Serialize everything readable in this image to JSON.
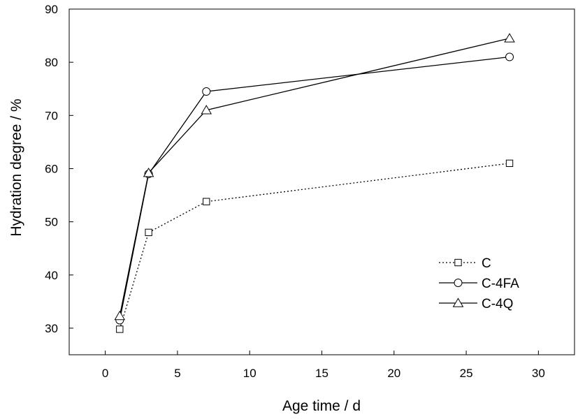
{
  "chart_data": {
    "type": "line",
    "title": "",
    "xlabel": "Age time / d",
    "ylabel": "Hydration degree / %",
    "xlim": [
      -2.5,
      32.5
    ],
    "ylim": [
      25,
      90
    ],
    "xticks": [
      0,
      5,
      10,
      15,
      20,
      25,
      30
    ],
    "yticks": [
      30,
      40,
      50,
      60,
      70,
      80,
      90
    ],
    "grid": false,
    "legend_position": "bottom-right",
    "series": [
      {
        "name": "C",
        "x": [
          1,
          3,
          7,
          28
        ],
        "y": [
          29.8,
          48.0,
          53.8,
          61.0
        ],
        "marker": "square",
        "line_style": "dotted",
        "color": "#000000"
      },
      {
        "name": "C-4FA",
        "x": [
          1,
          3,
          7,
          28
        ],
        "y": [
          31.5,
          59.0,
          74.5,
          81.0
        ],
        "marker": "circle",
        "line_style": "solid",
        "color": "#000000"
      },
      {
        "name": "C-4Q",
        "x": [
          1,
          3,
          7,
          28
        ],
        "y": [
          32.3,
          59.2,
          71.0,
          84.5
        ],
        "marker": "triangle",
        "line_style": "solid",
        "color": "#000000"
      }
    ]
  }
}
